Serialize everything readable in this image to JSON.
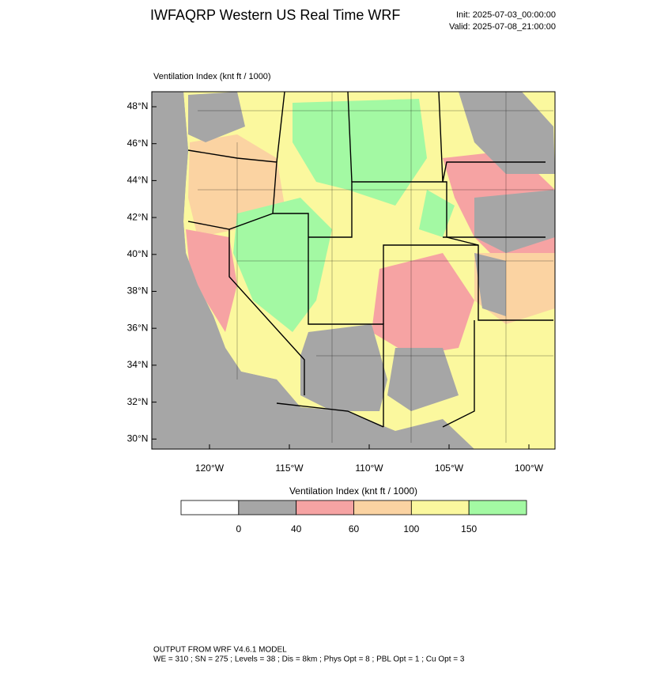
{
  "header": {
    "title": "IWFAQRP Western US Real Time WRF",
    "init": "Init: 2025-07-03_00:00:00",
    "valid": "Valid: 2025-07-08_21:00:00"
  },
  "map": {
    "label": "Ventilation Index   (knt ft / 1000)",
    "lat_labels": [
      "48°N",
      "46°N",
      "44°N",
      "42°N",
      "40°N",
      "38°N",
      "36°N",
      "34°N",
      "32°N",
      "30°N"
    ],
    "lon_labels": [
      "120°W",
      "115°W",
      "110°W",
      "105°W",
      "100°W"
    ]
  },
  "colorbar": {
    "title": "Ventilation Index   (knt ft / 1000)",
    "levels": [
      0,
      40,
      60,
      100,
      150
    ],
    "colors": [
      "#ffffff",
      "#a6a6a6",
      "#f6a3a3",
      "#fbd3a2",
      "#fbf89e",
      "#a3f9a3"
    ]
  },
  "footer": {
    "line1": "OUTPUT FROM WRF V4.6.1 MODEL",
    "line2": "WE = 310 ; SN = 275 ; Levels = 38 ; Dis = 8km ; Phys Opt = 8 ; PBL Opt = 1 ; Cu Opt = 3"
  }
}
